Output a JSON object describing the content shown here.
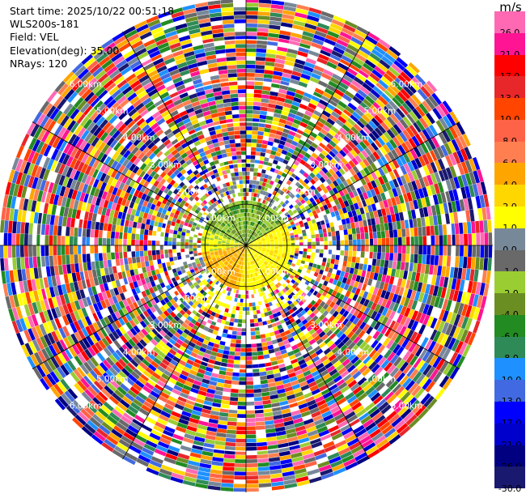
{
  "header": {
    "start_time": "Start time: 2025/10/22 00:51:18",
    "instrument": "WLS200s-181",
    "field": "Field: VEL",
    "elevation": "Elevation(deg): 35.00",
    "nrays": "NRays: 120"
  },
  "colorbar": {
    "title": "m/s",
    "ticks": [
      "26.0",
      "21.0",
      "17.0",
      "13.0",
      "10.0",
      "8.0",
      "6.0",
      "4.0",
      "2.0",
      "1.0",
      "0.0",
      "-1.0",
      "-2.0",
      "-4.0",
      "-6.0",
      "-8.0",
      "-10.0",
      "-13.0",
      "-17.0",
      "-21.0",
      "-26.0",
      "-30.0"
    ],
    "colors": [
      "#ff69b4",
      "#ff1493",
      "#ff0000",
      "#e8272a",
      "#ff4500",
      "#ff6347",
      "#ff7f50",
      "#ffa500",
      "#ffd700",
      "#ffff00",
      "#778899",
      "#696969",
      "#9acd32",
      "#6b8e23",
      "#228b22",
      "#2e8b57",
      "#1e90ff",
      "#4169e1",
      "#0000ff",
      "#0000cd",
      "#000080",
      "#191970"
    ]
  },
  "chart_data": {
    "type": "ppi",
    "field": "VEL",
    "units": "m/s",
    "n_rays": 120,
    "elevation_deg": 35.0,
    "max_range_km": 6.0,
    "range_rings_km": [
      1,
      2,
      3,
      4,
      5,
      6
    ],
    "ring_label_text": [
      "1.00km",
      "2.00km",
      "3.00km",
      "4.00km",
      "5.00km",
      "6.00km"
    ],
    "spokes_every_deg": 30,
    "value_range": [
      -30,
      26
    ],
    "near_field_pattern": {
      "within_km": 1.0,
      "east_half": "yellow (~2 to 4 m/s)",
      "south_west": "orange (~6 m/s)",
      "north_half": "olive/green (~-2 to -6 m/s)"
    },
    "far_field": "noise / random velocities beyond ~2.5 km"
  }
}
